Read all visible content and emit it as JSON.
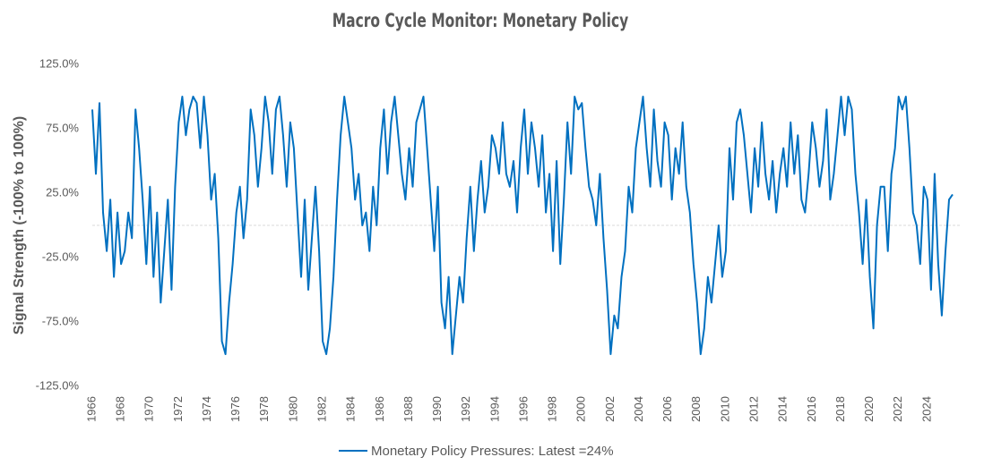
{
  "chart_data": {
    "type": "line",
    "title": "Macro Cycle Monitor: Monetary Policy",
    "y_label": "Signal Strength (-100% to 100%)",
    "xlim": [
      1966,
      2026
    ],
    "xticks": [
      1966,
      1968,
      1970,
      1972,
      1974,
      1976,
      1978,
      1980,
      1982,
      1984,
      1986,
      1988,
      1990,
      1992,
      1994,
      1996,
      1998,
      2000,
      2002,
      2004,
      2006,
      2008,
      2010,
      2012,
      2014,
      2016,
      2018,
      2020,
      2022,
      2024
    ],
    "ylim": [
      -125,
      125
    ],
    "yticks": [
      {
        "value": -125,
        "label": "-125.0%"
      },
      {
        "value": -75,
        "label": "-75.0%"
      },
      {
        "value": -25,
        "label": "-25.0%"
      },
      {
        "value": 25,
        "label": "25.0%"
      },
      {
        "value": 75,
        "label": "75.0%"
      },
      {
        "value": 125,
        "label": "125.0%"
      }
    ],
    "zero_line": true,
    "legend": "bottom",
    "x": [
      1966,
      1966.25,
      1966.5,
      1966.75,
      1967,
      1967.25,
      1967.5,
      1967.75,
      1968,
      1968.25,
      1968.5,
      1968.75,
      1969,
      1969.25,
      1969.5,
      1969.75,
      1970,
      1970.25,
      1970.5,
      1970.75,
      1971,
      1971.25,
      1971.5,
      1971.75,
      1972,
      1972.25,
      1972.5,
      1972.75,
      1973,
      1973.25,
      1973.5,
      1973.75,
      1974,
      1974.25,
      1974.5,
      1974.75,
      1975,
      1975.25,
      1975.5,
      1975.75,
      1976,
      1976.25,
      1976.5,
      1976.75,
      1977,
      1977.25,
      1977.5,
      1977.75,
      1978,
      1978.25,
      1978.5,
      1978.75,
      1979,
      1979.25,
      1979.5,
      1979.75,
      1980,
      1980.25,
      1980.5,
      1980.75,
      1981,
      1981.25,
      1981.5,
      1981.75,
      1982,
      1982.25,
      1982.5,
      1982.75,
      1983,
      1983.25,
      1983.5,
      1983.75,
      1984,
      1984.25,
      1984.5,
      1984.75,
      1985,
      1985.25,
      1985.5,
      1985.75,
      1986,
      1986.25,
      1986.5,
      1986.75,
      1987,
      1987.25,
      1987.5,
      1987.75,
      1988,
      1988.25,
      1988.5,
      1988.75,
      1989,
      1989.25,
      1989.5,
      1989.75,
      1990,
      1990.25,
      1990.5,
      1990.75,
      1991,
      1991.25,
      1991.5,
      1991.75,
      1992,
      1992.25,
      1992.5,
      1992.75,
      1993,
      1993.25,
      1993.5,
      1993.75,
      1994,
      1994.25,
      1994.5,
      1994.75,
      1995,
      1995.25,
      1995.5,
      1995.75,
      1996,
      1996.25,
      1996.5,
      1996.75,
      1997,
      1997.25,
      1997.5,
      1997.75,
      1998,
      1998.25,
      1998.5,
      1998.75,
      1999,
      1999.25,
      1999.5,
      1999.75,
      2000,
      2000.25,
      2000.5,
      2000.75,
      2001,
      2001.25,
      2001.5,
      2001.75,
      2002,
      2002.25,
      2002.5,
      2002.75,
      2003,
      2003.25,
      2003.5,
      2003.75,
      2004,
      2004.25,
      2004.5,
      2004.75,
      2005,
      2005.25,
      2005.5,
      2005.75,
      2006,
      2006.25,
      2006.5,
      2006.75,
      2007,
      2007.25,
      2007.5,
      2007.75,
      2008,
      2008.25,
      2008.5,
      2008.75,
      2009,
      2009.25,
      2009.5,
      2009.75,
      2010,
      2010.25,
      2010.5,
      2010.75,
      2011,
      2011.25,
      2011.5,
      2011.75,
      2012,
      2012.25,
      2012.5,
      2012.75,
      2013,
      2013.25,
      2013.5,
      2013.75,
      2014,
      2014.25,
      2014.5,
      2014.75,
      2015,
      2015.25,
      2015.5,
      2015.75,
      2016,
      2016.25,
      2016.5,
      2016.75,
      2017,
      2017.25,
      2017.5,
      2017.75,
      2018,
      2018.25,
      2018.5,
      2018.75,
      2019,
      2019.25,
      2019.5,
      2019.75,
      2020,
      2020.25,
      2020.5,
      2020.75,
      2021,
      2021.25,
      2021.5,
      2021.75,
      2022,
      2022.25,
      2022.5,
      2022.75,
      2023,
      2023.25,
      2023.5,
      2023.75,
      2024,
      2024.25,
      2024.5,
      2024.75,
      2025,
      2025.25,
      2025.5,
      2025.75
    ],
    "series": [
      {
        "name": "Monetary Policy Pressures: Latest =24%",
        "color": "#0070c0",
        "values": [
          90,
          40,
          95,
          10,
          -20,
          20,
          -40,
          10,
          -30,
          -20,
          10,
          -10,
          90,
          60,
          20,
          -30,
          30,
          -40,
          10,
          -60,
          -20,
          20,
          -50,
          30,
          80,
          100,
          70,
          90,
          100,
          95,
          60,
          100,
          70,
          20,
          40,
          -10,
          -90,
          -100,
          -60,
          -30,
          10,
          30,
          -10,
          20,
          90,
          70,
          30,
          60,
          100,
          80,
          40,
          90,
          100,
          70,
          30,
          80,
          60,
          10,
          -40,
          20,
          -50,
          -10,
          30,
          -20,
          -90,
          -100,
          -80,
          -40,
          20,
          70,
          100,
          80,
          60,
          20,
          40,
          0,
          10,
          -20,
          30,
          0,
          60,
          90,
          40,
          80,
          100,
          70,
          40,
          20,
          60,
          30,
          80,
          90,
          100,
          60,
          20,
          -20,
          30,
          -60,
          -80,
          -40,
          -100,
          -70,
          -40,
          -60,
          -10,
          30,
          -20,
          20,
          50,
          10,
          30,
          70,
          60,
          40,
          80,
          40,
          30,
          50,
          10,
          60,
          90,
          40,
          80,
          60,
          30,
          70,
          10,
          40,
          -20,
          50,
          -30,
          20,
          80,
          40,
          100,
          90,
          95,
          60,
          30,
          20,
          0,
          40,
          -10,
          -50,
          -100,
          -70,
          -80,
          -40,
          -20,
          30,
          10,
          60,
          80,
          100,
          60,
          30,
          90,
          50,
          30,
          80,
          70,
          20,
          60,
          40,
          80,
          30,
          10,
          -30,
          -60,
          -100,
          -80,
          -40,
          -60,
          -30,
          0,
          -40,
          -20,
          60,
          20,
          80,
          90,
          70,
          40,
          10,
          60,
          30,
          80,
          40,
          20,
          50,
          10,
          40,
          60,
          30,
          80,
          40,
          70,
          20,
          10,
          40,
          80,
          60,
          30,
          50,
          90,
          20,
          40,
          70,
          100,
          70,
          100,
          90,
          40,
          10,
          -30,
          20,
          -40,
          -80,
          0,
          30,
          30,
          -20,
          40,
          60,
          100,
          90,
          100,
          60,
          10,
          0,
          -30,
          30,
          20,
          -50,
          40,
          -30,
          -70,
          -20,
          20,
          24
        ]
      }
    ]
  }
}
